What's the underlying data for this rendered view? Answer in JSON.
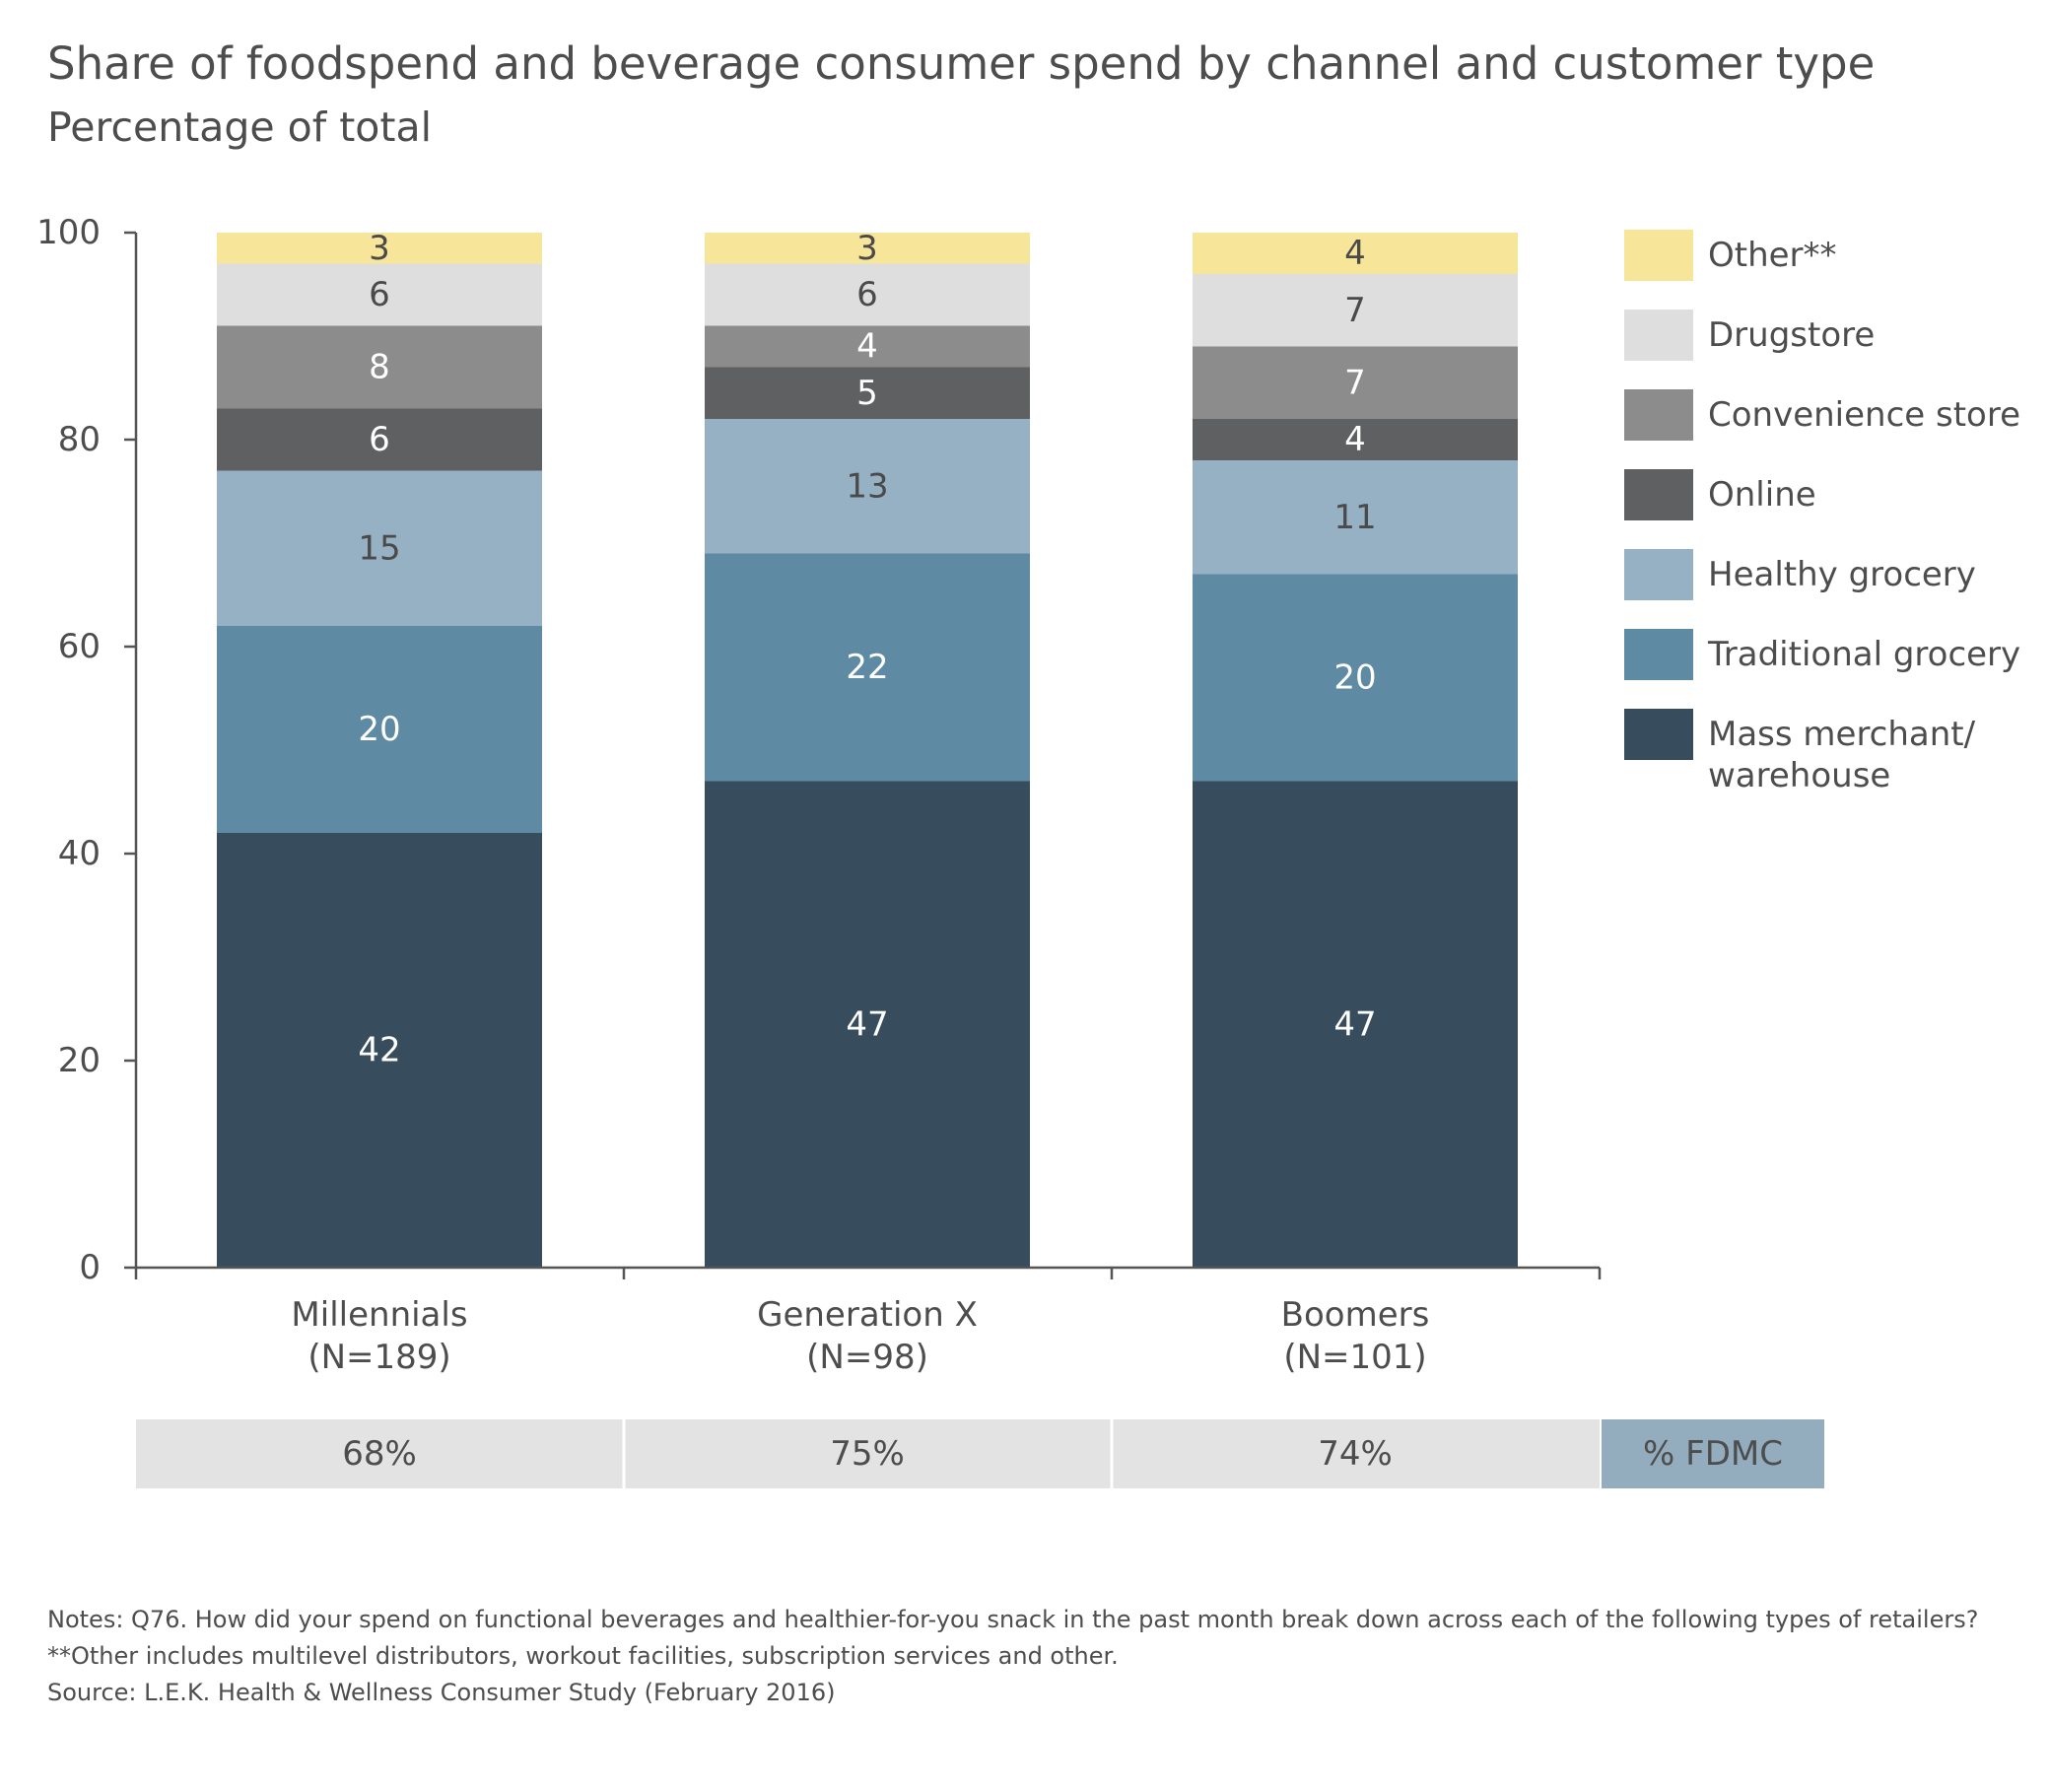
{
  "title": "Share of foodspend and beverage consumer spend by channel and customer type",
  "subtitle": "Percentage of total",
  "chart_data": {
    "type": "bar",
    "stacked": true,
    "categories": [
      "Millennials",
      "Generation X",
      "Boomers"
    ],
    "category_sublabels": [
      "(N=189)",
      "(N=98)",
      "(N=101)"
    ],
    "ylim": [
      0,
      100
    ],
    "yticks": [
      0,
      20,
      40,
      60,
      80,
      100
    ],
    "series": [
      {
        "name": "Mass merchant/ warehouse",
        "legend_lines": [
          "Mass merchant/",
          "warehouse"
        ],
        "color": "#374d5e",
        "label_color": "#ffffff",
        "values": [
          42,
          47,
          47
        ]
      },
      {
        "name": "Traditional grocery",
        "legend_lines": [
          "Traditional grocery"
        ],
        "color": "#5f8aa4",
        "label_color": "#ffffff",
        "values": [
          20,
          22,
          20
        ]
      },
      {
        "name": "Healthy grocery",
        "legend_lines": [
          "Healthy grocery"
        ],
        "color": "#97b1c4",
        "label_color": "#4a4a4a",
        "values": [
          15,
          13,
          11
        ]
      },
      {
        "name": "Online",
        "legend_lines": [
          "Online"
        ],
        "color": "#5f6061",
        "label_color": "#ffffff",
        "values": [
          6,
          5,
          4
        ]
      },
      {
        "name": "Convenience store",
        "legend_lines": [
          "Convenience store"
        ],
        "color": "#8c8c8c",
        "label_color": "#ffffff",
        "values": [
          8,
          4,
          7
        ]
      },
      {
        "name": "Drugstore",
        "legend_lines": [
          "Drugstore"
        ],
        "color": "#dedede",
        "label_color": "#4a4a4a",
        "values": [
          6,
          6,
          7
        ]
      },
      {
        "name": "Other**",
        "legend_lines": [
          "Other**"
        ],
        "color": "#f7e59a",
        "label_color": "#4a4a4a",
        "values": [
          3,
          3,
          4
        ]
      }
    ],
    "fdmc": {
      "label": "% FDMC",
      "values": [
        "68%",
        "75%",
        "74%"
      ]
    },
    "legend_position": "right",
    "grid": false
  },
  "notes": [
    "Notes: Q76. How did your spend on functional beverages and healthier-for-you snack in the past month break down across each of the following types of retailers?",
    "**Other includes multilevel distributors, workout facilities, subscription services and other.",
    "Source: L.E.K. Health & Wellness Consumer Study (February 2016)"
  ]
}
